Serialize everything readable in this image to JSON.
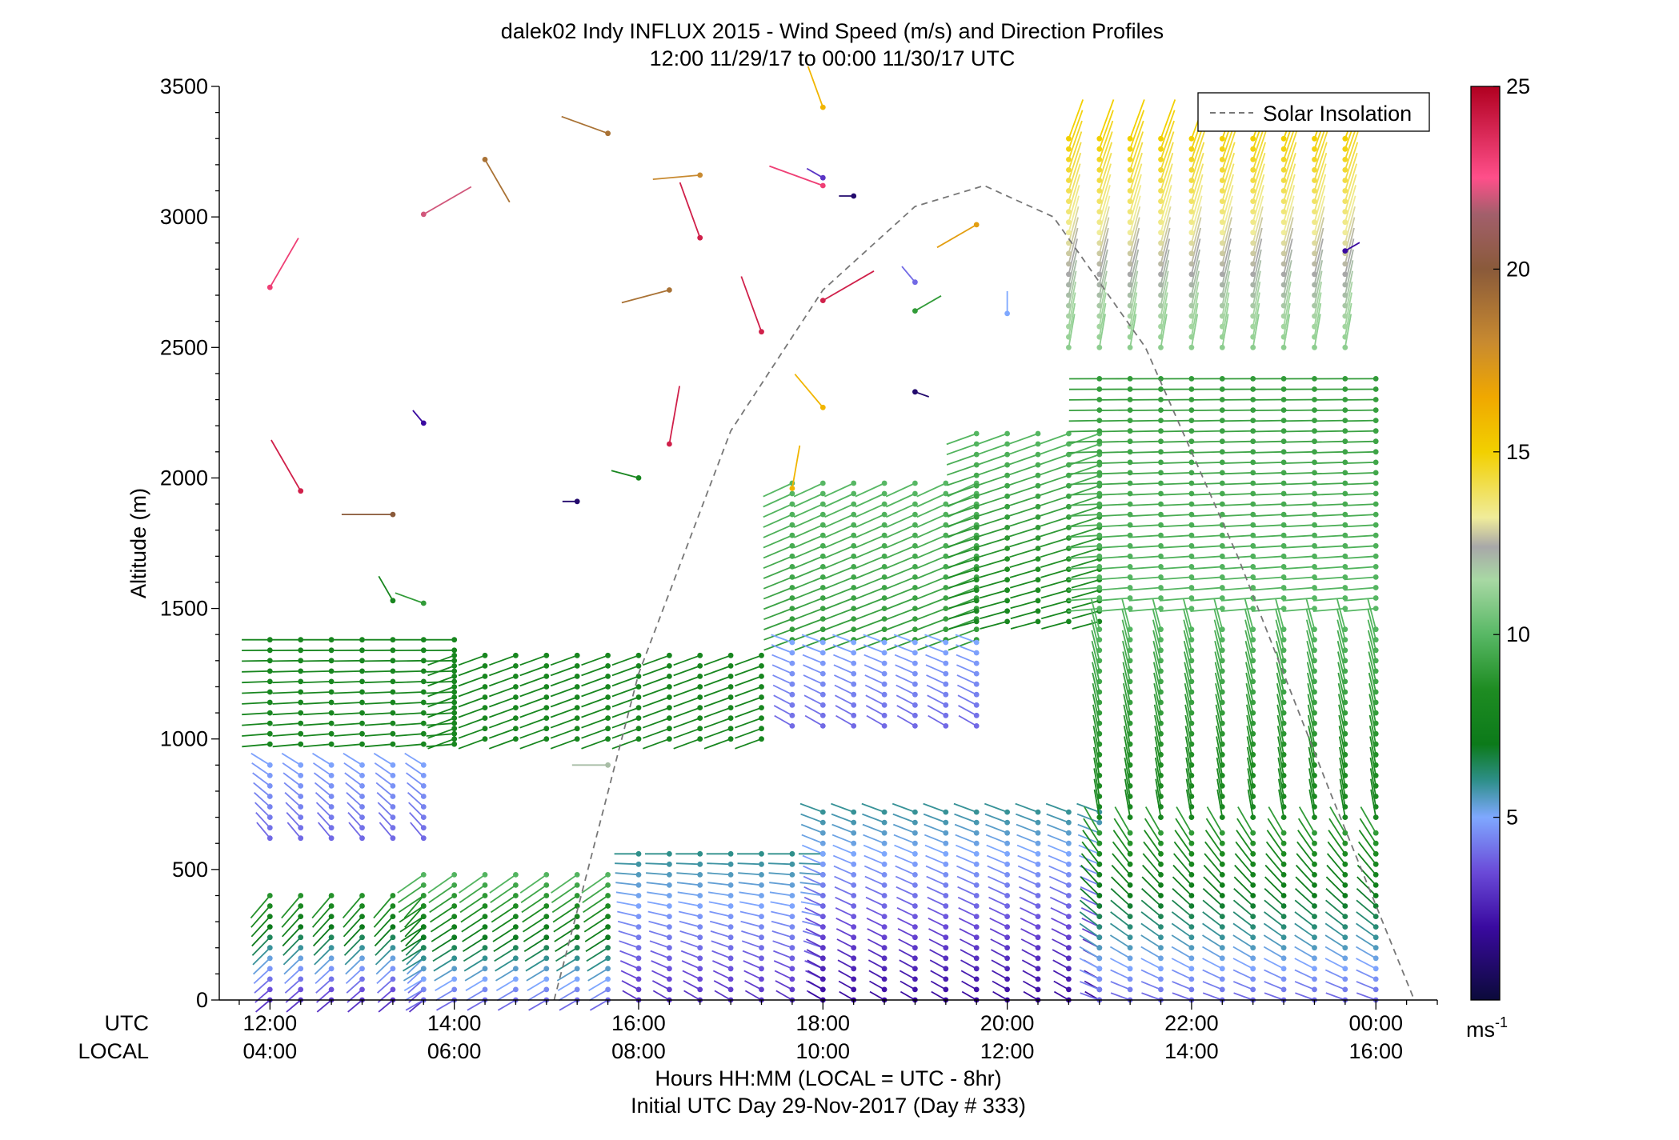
{
  "chart_data": {
    "type": "wind-barb-profile",
    "title": "dalek02 Indy INFLUX 2015 - Wind Speed (m/s) and Direction Profiles",
    "subtitle": "12:00 11/29/17 to 00:00 11/30/17  UTC",
    "ylabel": "Altitude (m)",
    "ylim": [
      0,
      3500
    ],
    "yticks": [
      0,
      500,
      1000,
      1500,
      2000,
      2500,
      3000,
      3500
    ],
    "xlim": [
      "11:27",
      "00:40"
    ],
    "xticks_utc": [
      "12:00",
      "14:00",
      "16:00",
      "18:00",
      "20:00",
      "22:00",
      "00:00"
    ],
    "xticks_local": [
      "04:00",
      "06:00",
      "08:00",
      "10:00",
      "12:00",
      "14:00",
      "16:00"
    ],
    "xaxis_row_labels": [
      "UTC",
      "LOCAL"
    ],
    "xlabel": "Hours HH:MM  (LOCAL = UTC - 8hr)",
    "xlabel2": "Initial UTC Day 29-Nov-2017 (Day # 333)",
    "legend": {
      "entries": [
        "Solar Insolation"
      ],
      "placement": "top-right"
    },
    "colorbar": {
      "min": 0,
      "max": 25,
      "ticks": [
        5,
        10,
        15,
        20,
        25
      ],
      "unit_label": "ms",
      "unit_exponent": "-1"
    },
    "solar_insolation": {
      "style": "dashed-gray",
      "x": [
        "15:05",
        "16:00",
        "17:00",
        "18:00",
        "19:00",
        "19:45",
        "20:30",
        "21:30",
        "22:30",
        "23:30",
        "00:25"
      ],
      "altitude": [
        0,
        1250,
        2180,
        2720,
        3040,
        3120,
        3000,
        2500,
        1700,
        800,
        0
      ]
    },
    "profiles": {
      "time_step_minutes": 20,
      "start": "12:00",
      "end": "00:00",
      "segments": [
        {
          "from": "12:00",
          "to": "13:40",
          "z_min": 0,
          "z_max": 420,
          "speed_bottom": 3,
          "speed_top": 9,
          "dir_bottom": 230,
          "dir_top": 220
        },
        {
          "from": "13:40",
          "to": "15:40",
          "z_min": 0,
          "z_max": 490,
          "speed_bottom": 4,
          "speed_top": 10,
          "dir_bottom": 240,
          "dir_top": 235
        },
        {
          "from": "16:00",
          "to": "18:00",
          "z_min": 0,
          "z_max": 560,
          "speed_bottom": 3,
          "speed_top": 6,
          "dir_bottom": 300,
          "dir_top": 270
        },
        {
          "from": "18:00",
          "to": "21:00",
          "z_min": 0,
          "z_max": 740,
          "speed_bottom": 2,
          "speed_top": 6,
          "dir_bottom": 300,
          "dir_top": 290
        },
        {
          "from": "21:00",
          "to": "00:00",
          "z_min": 0,
          "z_max": 640,
          "speed_bottom": 4,
          "speed_top": 9,
          "dir_bottom": 290,
          "dir_top": 330
        },
        {
          "from": "12:00",
          "to": "14:00",
          "z_min": 980,
          "z_max": 1380,
          "speed_bottom": 8,
          "speed_top": 8,
          "dir_bottom": 265,
          "dir_top": 270
        },
        {
          "from": "14:00",
          "to": "17:20",
          "z_min": 1000,
          "z_max": 1330,
          "speed_bottom": 8,
          "speed_top": 8,
          "dir_bottom": 250,
          "dir_top": 250
        },
        {
          "from": "12:00",
          "to": "13:40",
          "z_min": 620,
          "z_max": 930,
          "speed_bottom": 4,
          "speed_top": 5,
          "dir_bottom": 320,
          "dir_top": 300
        },
        {
          "from": "17:40",
          "to": "19:40",
          "z_min": 1380,
          "z_max": 2000,
          "speed_bottom": 9,
          "speed_top": 10,
          "dir_bottom": 250,
          "dir_top": 245
        },
        {
          "from": "17:40",
          "to": "19:40",
          "z_min": 1050,
          "z_max": 1370,
          "speed_bottom": 4,
          "speed_top": 5,
          "dir_bottom": 300,
          "dir_top": 290
        },
        {
          "from": "19:40",
          "to": "21:00",
          "z_min": 1450,
          "z_max": 2200,
          "speed_bottom": 8,
          "speed_top": 10,
          "dir_bottom": 255,
          "dir_top": 250
        },
        {
          "from": "21:00",
          "to": "00:00",
          "z_min": 1500,
          "z_max": 2400,
          "speed_bottom": 10,
          "speed_top": 9,
          "dir_bottom": 265,
          "dir_top": 270
        },
        {
          "from": "21:00",
          "to": "00:00",
          "z_min": 700,
          "z_max": 1450,
          "speed_bottom": 8,
          "speed_top": 10,
          "dir_bottom": 350,
          "dir_top": 345
        },
        {
          "from": "20:40",
          "to": "23:40",
          "z_min": 2500,
          "z_max": 3300,
          "speed_bottom": 11,
          "speed_top": 15,
          "dir_bottom": 10,
          "dir_top": 20
        }
      ]
    },
    "scattered_barbs": [
      {
        "x": "12:00",
        "altitude": 2730,
        "speed": 23,
        "dir": 30
      },
      {
        "x": "12:20",
        "altitude": 1950,
        "speed": 24,
        "dir": 330
      },
      {
        "x": "13:40",
        "altitude": 3010,
        "speed": 22,
        "dir": 60
      },
      {
        "x": "13:40",
        "altitude": 2210,
        "speed": 2,
        "dir": 320
      },
      {
        "x": "13:20",
        "altitude": 1860,
        "speed": 20,
        "dir": 270
      },
      {
        "x": "13:40",
        "altitude": 1520,
        "speed": 9,
        "dir": 290
      },
      {
        "x": "13:20",
        "altitude": 1530,
        "speed": 8,
        "dir": 330
      },
      {
        "x": "14:20",
        "altitude": 3220,
        "speed": 19,
        "dir": 150
      },
      {
        "x": "15:40",
        "altitude": 3320,
        "speed": 19,
        "dir": 290
      },
      {
        "x": "15:20",
        "altitude": 1910,
        "speed": 1,
        "dir": 270
      },
      {
        "x": "16:00",
        "altitude": 2000,
        "speed": 8,
        "dir": 285
      },
      {
        "x": "16:20",
        "altitude": 2720,
        "speed": 19,
        "dir": 255
      },
      {
        "x": "16:40",
        "altitude": 3160,
        "speed": 18,
        "dir": 265
      },
      {
        "x": "16:20",
        "altitude": 2130,
        "speed": 24,
        "dir": 10
      },
      {
        "x": "16:40",
        "altitude": 2920,
        "speed": 24,
        "dir": 340
      },
      {
        "x": "17:20",
        "altitude": 2560,
        "speed": 24,
        "dir": 340
      },
      {
        "x": "18:00",
        "altitude": 3420,
        "speed": 16,
        "dir": 340
      },
      {
        "x": "18:00",
        "altitude": 3150,
        "speed": 3,
        "dir": 300
      },
      {
        "x": "18:00",
        "altitude": 3120,
        "speed": 23,
        "dir": 290
      },
      {
        "x": "18:20",
        "altitude": 3080,
        "speed": 1,
        "dir": 270
      },
      {
        "x": "18:00",
        "altitude": 2680,
        "speed": 24,
        "dir": 60
      },
      {
        "x": "18:00",
        "altitude": 2270,
        "speed": 16,
        "dir": 320
      },
      {
        "x": "17:40",
        "altitude": 1960,
        "speed": 16,
        "dir": 10
      },
      {
        "x": "19:00",
        "altitude": 2330,
        "speed": 1,
        "dir": 110
      },
      {
        "x": "19:00",
        "altitude": 2640,
        "speed": 9,
        "dir": 60
      },
      {
        "x": "19:00",
        "altitude": 2750,
        "speed": 4,
        "dir": 320
      },
      {
        "x": "19:40",
        "altitude": 2970,
        "speed": 17,
        "dir": 240
      },
      {
        "x": "20:00",
        "altitude": 2630,
        "speed": 5,
        "dir": 0
      },
      {
        "x": "23:40",
        "altitude": 2870,
        "speed": 2,
        "dir": 60
      },
      {
        "x": "15:40",
        "altitude": 900,
        "speed": 12,
        "dir": 270
      }
    ]
  }
}
